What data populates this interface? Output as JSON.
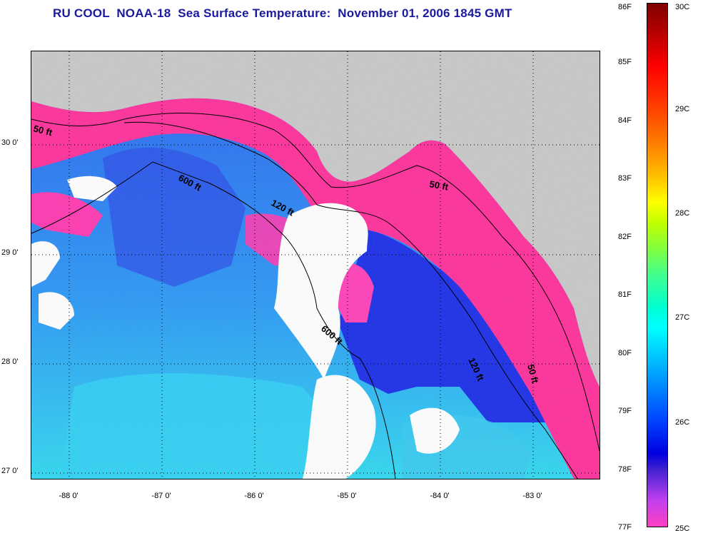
{
  "title": "RU COOL  NOAA-18  Sea Surface Temperature:  November 01, 2006 1845 GMT",
  "axes": {
    "y_labels": [
      "30 0'",
      "29 0'",
      "28 0'",
      "27 0'"
    ],
    "x_labels": [
      "-88 0'",
      "-87 0'",
      "-86 0'",
      "-85 0'",
      "-84 0'",
      "-83 0'"
    ]
  },
  "depth_contours": [
    "50 ft",
    "600 ft",
    "120 ft",
    "600 ft",
    "120 ft",
    "50 ft",
    "50 ft"
  ],
  "colorbar": {
    "fahrenheit": [
      "86F",
      "85F",
      "84F",
      "83F",
      "82F",
      "81F",
      "80F",
      "79F",
      "78F",
      "77F"
    ],
    "celsius": [
      "30C",
      "29C",
      "28C",
      "27C",
      "26C",
      "25C"
    ]
  },
  "colors": {
    "title": "#1a1aa0",
    "land": "#c8c8c8",
    "cloud": "#ffffff",
    "warm": "#ff3399",
    "mid": "#2050ff",
    "cool": "#20c8ff"
  }
}
